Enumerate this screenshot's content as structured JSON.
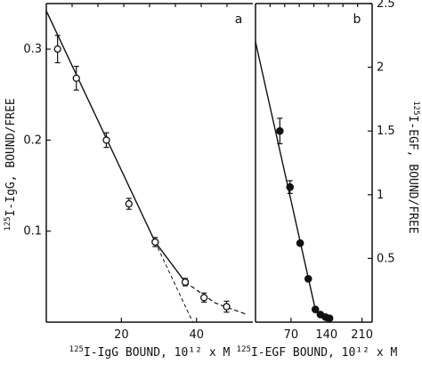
{
  "chart_data": [
    {
      "panel": "a",
      "type": "scatter",
      "xlabel": "125I-IgG BOUND, 10¹² x M",
      "ylabel": "125I-IgG, BOUND/FREE",
      "xlim": [
        0,
        55
      ],
      "ylim": [
        0,
        0.35
      ],
      "x_ticks": [
        20,
        40
      ],
      "y_ticks": [
        0.1,
        0.2,
        0.3
      ],
      "marker": "open-circle",
      "error_bars": true,
      "points": [
        {
          "x": 3,
          "y": 0.3,
          "err": 0.015
        },
        {
          "x": 8,
          "y": 0.268,
          "err": 0.013
        },
        {
          "x": 16,
          "y": 0.2,
          "err": 0.008
        },
        {
          "x": 22,
          "y": 0.13,
          "err": 0.006
        },
        {
          "x": 29,
          "y": 0.088,
          "err": 0.005
        },
        {
          "x": 37,
          "y": 0.044,
          "err": 0.004
        },
        {
          "x": 42,
          "y": 0.027,
          "err": 0.005
        },
        {
          "x": 48,
          "y": 0.017,
          "err": 0.006
        }
      ],
      "fit_line": [
        [
          0,
          0.342
        ],
        [
          29,
          0.088
        ],
        [
          37,
          0.044
        ],
        [
          45,
          0.021
        ],
        [
          53,
          0.009
        ]
      ],
      "extrapolation": [
        [
          29,
          0.088
        ],
        [
          39,
          0.0
        ]
      ]
    },
    {
      "panel": "b",
      "type": "scatter",
      "xlabel": "125I-EGF BOUND, 10¹² x M",
      "ylabel": "125I-EGF, BOUND/FREE",
      "xlim": [
        0,
        230
      ],
      "ylim": [
        0,
        2.5
      ],
      "x_ticks": [
        70,
        140,
        210
      ],
      "y_ticks": [
        0.5,
        1.0,
        1.5,
        2.0,
        2.5
      ],
      "marker": "filled-circle",
      "error_bars": true,
      "points": [
        {
          "x": 48,
          "y": 1.5,
          "err": 0.1
        },
        {
          "x": 68,
          "y": 1.06,
          "err": 0.05
        },
        {
          "x": 88,
          "y": 0.62
        },
        {
          "x": 104,
          "y": 0.34
        },
        {
          "x": 118,
          "y": 0.1
        },
        {
          "x": 128,
          "y": 0.06
        },
        {
          "x": 138,
          "y": 0.04
        },
        {
          "x": 146,
          "y": 0.03
        }
      ],
      "fit_line": [
        [
          0,
          2.2
        ],
        [
          118,
          0.1
        ],
        [
          146,
          0.02
        ]
      ]
    }
  ]
}
